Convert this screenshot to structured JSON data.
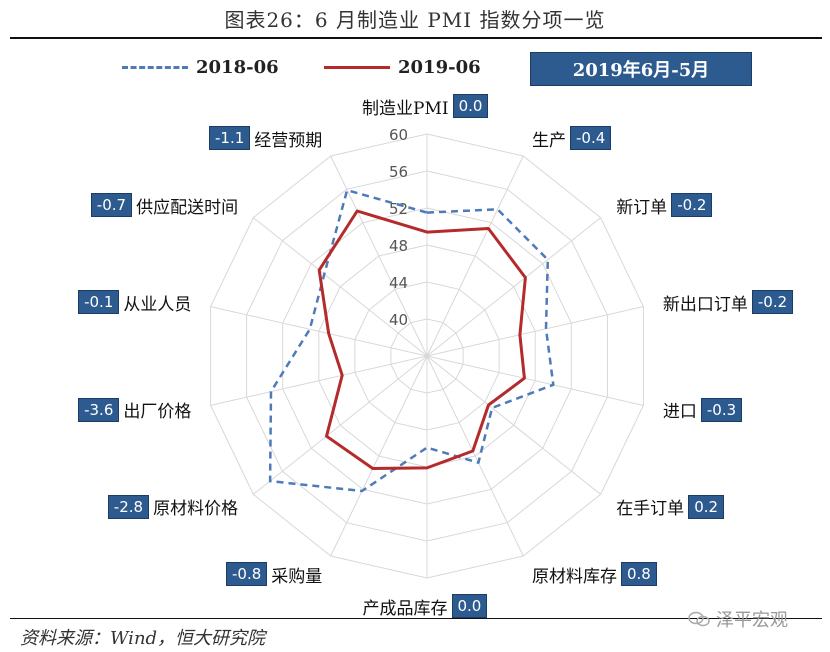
{
  "title": "图表26：6 月制造业 PMI 指数分项一览",
  "legend": {
    "a": "2018-06",
    "b": "2019-06"
  },
  "period": "2019年6月-5月",
  "source": "资料来源：Wind，恒大研究院",
  "watermark": "泽平宏观",
  "colors": {
    "series_2018": "#4e7bb7",
    "series_2019": "#b52a2a",
    "box_bg": "#2e5b8f"
  },
  "chart_data": {
    "type": "radar",
    "r_ticks": [
      40,
      44,
      48,
      52,
      56,
      60
    ],
    "r_range": [
      36,
      60
    ],
    "categories": [
      {
        "name": "制造业PMI",
        "diff": "0.0"
      },
      {
        "name": "生产",
        "diff": "-0.4"
      },
      {
        "name": "新订单",
        "diff": "-0.2"
      },
      {
        "name": "新出口订单",
        "diff": "-0.2"
      },
      {
        "name": "进口",
        "diff": "-0.3"
      },
      {
        "name": "在手订单",
        "diff": "0.2"
      },
      {
        "name": "原材料库存",
        "diff": "0.8"
      },
      {
        "name": "产成品库存",
        "diff": "0.0"
      },
      {
        "name": "采购量",
        "diff": "-0.8"
      },
      {
        "name": "原材料价格",
        "diff": "-2.8"
      },
      {
        "name": "出厂价格",
        "diff": "-3.6"
      },
      {
        "name": "从业人员",
        "diff": "-0.1"
      },
      {
        "name": "供应配送时间",
        "diff": "-0.7"
      },
      {
        "name": "经营预期",
        "diff": "-1.1"
      }
    ],
    "series": [
      {
        "name": "2018-06",
        "values": [
          51.5,
          53.6,
          52.7,
          49.2,
          50.0,
          45.0,
          48.8,
          45.9,
          52.2,
          57.7,
          53.3,
          49.0,
          50.2,
          55.9
        ]
      },
      {
        "name": "2019-06",
        "values": [
          49.4,
          51.3,
          49.6,
          46.3,
          46.8,
          44.5,
          47.4,
          48.1,
          49.5,
          49.9,
          45.4,
          46.9,
          50.9,
          53.4
        ]
      }
    ]
  }
}
